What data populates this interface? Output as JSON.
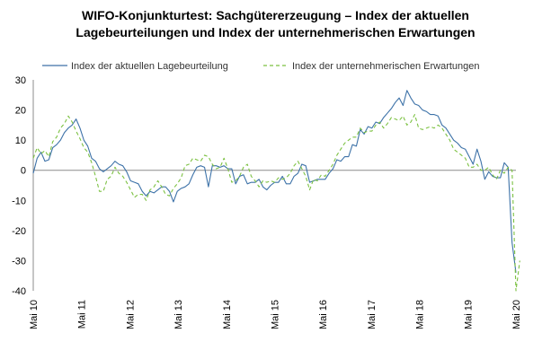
{
  "chart_data": {
    "type": "line",
    "title_line1": "WIFO-Konjunkturtest: Sachgütererzeugung – Index der aktuellen",
    "title_line2": "Lagebeurteilungen und Index der unternehmerischen Erwartungen",
    "xlabel": "",
    "ylabel": "",
    "ylim": [
      -40,
      30
    ],
    "yticks": [
      -40,
      -30,
      -20,
      -10,
      0,
      10,
      20,
      30
    ],
    "xtick_labels": [
      "Mai 10",
      "Mai 11",
      "Mai 12",
      "Mai 13",
      "Mai 14",
      "Mai 15",
      "Mai 16",
      "Mai 17",
      "Mai 18",
      "Mai 19",
      "Mai 20"
    ],
    "x_start": "2010-05",
    "x_end": "2020-05",
    "grid": false,
    "legend_position": "top",
    "series": [
      {
        "name": "Index der aktuellen Lagebeurteilung",
        "color": "#3d72a8",
        "style": "solid",
        "values": [
          -1,
          4,
          6,
          3,
          3.5,
          7.5,
          8.5,
          10,
          12.5,
          14,
          15,
          17,
          14,
          10,
          8,
          4,
          3,
          0.5,
          -0.5,
          0.5,
          1.5,
          3,
          2,
          1.5,
          -0.5,
          -3.5,
          -4,
          -4.5,
          -7,
          -8.5,
          -7,
          -7.5,
          -6.5,
          -5.5,
          -5.5,
          -7,
          -10.5,
          -7,
          -6,
          -5.5,
          -4.5,
          -1.5,
          1,
          1.5,
          1,
          -5.5,
          1.5,
          1.5,
          1,
          1.5,
          0.5,
          0.5,
          -4.5,
          -2,
          -1.5,
          -4.5,
          -4,
          -4,
          -3,
          -5.5,
          -6.5,
          -5,
          -4,
          -4,
          -2,
          -4.5,
          -4.5,
          -2,
          -1,
          2,
          1.5,
          -4,
          -3.5,
          -3,
          -3,
          -3,
          -1,
          0.5,
          3.5,
          3,
          4.5,
          4.5,
          8.5,
          8,
          13.5,
          12,
          14.5,
          14,
          16,
          15.5,
          17.5,
          19,
          20.5,
          22.5,
          24,
          21.5,
          26.5,
          24,
          22,
          21.5,
          20,
          19.5,
          18.5,
          18.5,
          18,
          15,
          14,
          12,
          10,
          9,
          7.5,
          7,
          4.5,
          2,
          7,
          3,
          -3,
          -0.5,
          -2,
          -2.5,
          -2.5,
          2.5,
          1,
          -24,
          -34
        ]
      },
      {
        "name": "Index der unternehmerischen Erwartungen",
        "color": "#7cc142",
        "style": "dashed",
        "values": [
          4,
          7.5,
          5.5,
          6.5,
          4.5,
          9.5,
          11,
          14,
          15.5,
          18,
          16,
          13,
          10.5,
          7.5,
          6,
          2.5,
          -2,
          -7,
          -7,
          -3,
          -2,
          1,
          -1,
          -2,
          -4,
          -6.5,
          -9,
          -8,
          -8,
          -10,
          -6.5,
          -5.5,
          -3.5,
          -5.5,
          -8,
          -8.5,
          -6,
          -4.5,
          -2.5,
          1.5,
          2,
          4,
          3.5,
          3,
          5,
          4.5,
          2,
          0.5,
          1,
          4,
          0.5,
          -4,
          -3.5,
          -2,
          1,
          2,
          -2,
          -3.5,
          -5.5,
          -3.5,
          -4,
          -3.5,
          -4,
          -2.5,
          -3,
          -2.5,
          -1,
          1.5,
          3,
          0.5,
          -2,
          -6.5,
          -3,
          -3.5,
          -1.5,
          -2,
          0,
          2,
          5,
          7,
          9,
          10,
          11,
          11,
          14,
          12.5,
          13,
          13,
          15,
          16,
          14,
          15.5,
          17.5,
          17,
          16.5,
          18,
          15,
          16,
          18.5,
          14,
          13.5,
          14,
          14.5,
          14,
          15,
          14,
          12,
          10,
          7,
          6,
          5,
          4,
          1,
          1,
          2,
          0,
          0,
          1,
          -1.5,
          -3,
          0,
          -1,
          1,
          0,
          -40,
          -30
        ]
      }
    ]
  }
}
